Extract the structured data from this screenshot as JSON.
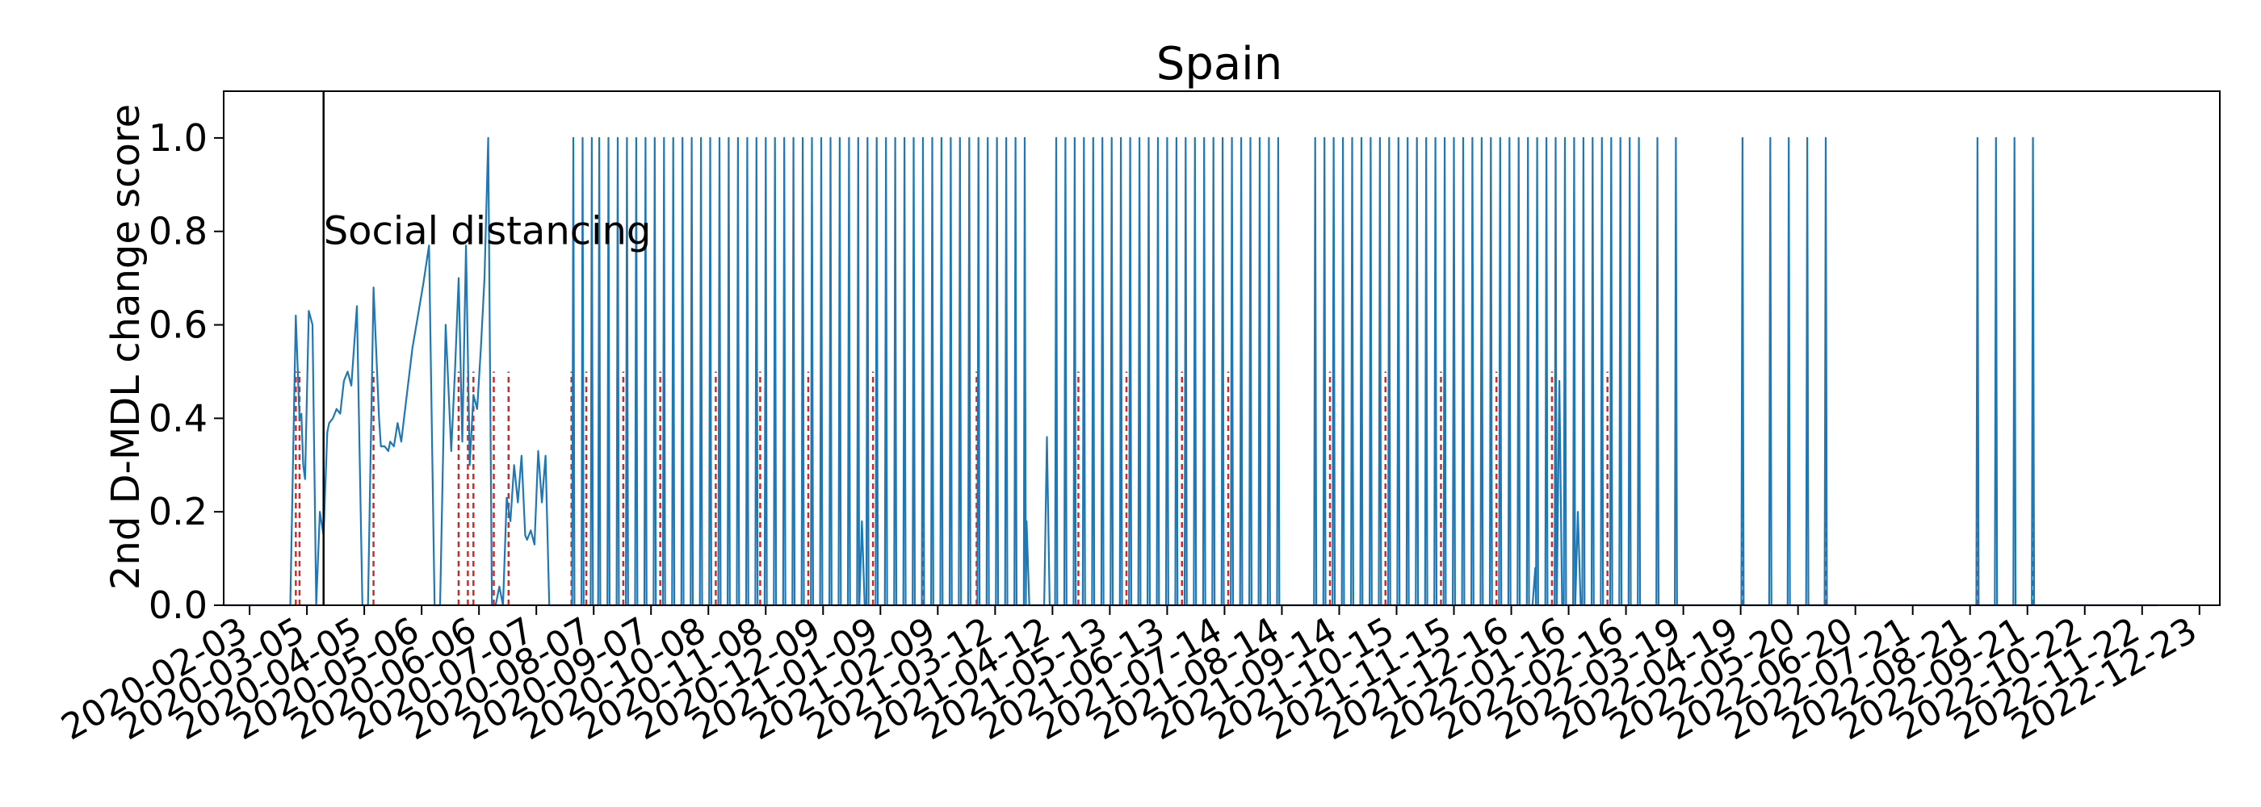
{
  "chart_data": {
    "type": "line",
    "title": "Spain",
    "xlabel": "",
    "ylabel": "2nd D-MDL change score",
    "ylim": [
      0,
      1.1
    ],
    "yticks": [
      "0.0",
      "0.2",
      "0.4",
      "0.6",
      "0.8",
      "1.0"
    ],
    "grid": false,
    "xlim": [
      "2020-01-20",
      "2023-01-03"
    ],
    "xticks": [
      "2020-02-03",
      "2020-03-05",
      "2020-04-05",
      "2020-05-06",
      "2020-06-06",
      "2020-07-07",
      "2020-08-07",
      "2020-09-07",
      "2020-10-08",
      "2020-11-08",
      "2020-12-09",
      "2021-01-09",
      "2021-02-09",
      "2021-03-12",
      "2021-04-12",
      "2021-05-13",
      "2021-06-13",
      "2021-07-14",
      "2021-08-14",
      "2021-09-14",
      "2021-10-15",
      "2021-11-15",
      "2021-12-16",
      "2022-01-16",
      "2022-02-16",
      "2022-03-19",
      "2022-04-19",
      "2022-05-20",
      "2022-06-20",
      "2022-07-21",
      "2022-08-21",
      "2022-09-21",
      "2022-10-22",
      "2022-11-22",
      "2022-12-23"
    ],
    "annotations": [
      {
        "label": "Social distancing",
        "x": "2020-03-14"
      }
    ],
    "early_segment": {
      "x": [
        "2020-01-20",
        "2020-02-25",
        "2020-02-28",
        "2020-03-01",
        "2020-03-02",
        "2020-03-03",
        "2020-03-04",
        "2020-03-06",
        "2020-03-08",
        "2020-03-10",
        "2020-03-12",
        "2020-03-14",
        "2020-03-16",
        "2020-03-17",
        "2020-03-19",
        "2020-03-21",
        "2020-03-23",
        "2020-03-25",
        "2020-03-27",
        "2020-03-29",
        "2020-04-01",
        "2020-04-04",
        "2020-04-07",
        "2020-04-10",
        "2020-04-13",
        "2020-04-14",
        "2020-04-16",
        "2020-04-18",
        "2020-04-19",
        "2020-04-21",
        "2020-04-23",
        "2020-04-25",
        "2020-04-28",
        "2020-05-01",
        "2020-05-04",
        "2020-05-07",
        "2020-05-10",
        "2020-05-13",
        "2020-05-16",
        "2020-05-19",
        "2020-05-22",
        "2020-05-24",
        "2020-05-26",
        "2020-05-28",
        "2020-05-30",
        "2020-06-01",
        "2020-06-03",
        "2020-06-05",
        "2020-06-07",
        "2020-06-09",
        "2020-06-11",
        "2020-06-13",
        "2020-06-15",
        "2020-06-17",
        "2020-06-19",
        "2020-06-21",
        "2020-06-23",
        "2020-06-25",
        "2020-06-27",
        "2020-06-29",
        "2020-07-01",
        "2020-07-02",
        "2020-07-04",
        "2020-07-06",
        "2020-07-08",
        "2020-07-10",
        "2020-07-12",
        "2020-07-14",
        "2020-07-16",
        "2020-07-18",
        "2020-07-20",
        "2020-07-22",
        "2020-07-24",
        "2020-07-25",
        "2020-07-26"
      ],
      "y": [
        0,
        0,
        0.62,
        0.4,
        0.41,
        0.3,
        0.27,
        0.63,
        0.6,
        0,
        0.2,
        0.15,
        0.37,
        0.39,
        0.4,
        0.42,
        0.41,
        0.48,
        0.5,
        0.47,
        0.64,
        0,
        0,
        0.68,
        0.4,
        0.34,
        0.34,
        0.33,
        0.35,
        0.34,
        0.39,
        0.35,
        0.45,
        0.55,
        0.62,
        0.69,
        0.77,
        0,
        0,
        0.6,
        0.33,
        0.5,
        0.7,
        0.35,
        0.77,
        0.3,
        0.45,
        0.42,
        0.55,
        0.7,
        1.0,
        0,
        0,
        0.04,
        0,
        0.23,
        0.18,
        0.3,
        0.22,
        0.32,
        0.15,
        0.14,
        0.16,
        0.13,
        0.33,
        0.22,
        0.32,
        0,
        0,
        0,
        0,
        0,
        0,
        0,
        0
      ]
    },
    "spike_dates": [
      "2020-07-27",
      "2020-08-01",
      "2020-08-06",
      "2020-08-10",
      "2020-08-15",
      "2020-08-20",
      "2020-08-25",
      "2020-08-30",
      "2020-09-04",
      "2020-09-09",
      "2020-09-14",
      "2020-09-19",
      "2020-09-24",
      "2020-09-29",
      "2020-10-04",
      "2020-10-09",
      "2020-10-14",
      "2020-10-19",
      "2020-10-24",
      "2020-10-29",
      "2020-11-03",
      "2020-11-08",
      "2020-11-13",
      "2020-11-18",
      "2020-11-23",
      "2020-11-28",
      "2020-12-03",
      "2020-12-08",
      "2020-12-13",
      "2020-12-18",
      "2020-12-23",
      "2020-12-28",
      "2021-01-02",
      "2021-01-07",
      "2021-01-12",
      "2021-01-17",
      "2021-01-22",
      "2021-01-27",
      "2021-02-01",
      "2021-02-06",
      "2021-02-11",
      "2021-02-16",
      "2021-02-21",
      "2021-02-26",
      "2021-03-03",
      "2021-03-08",
      "2021-03-13",
      "2021-03-18",
      "2021-03-23",
      "2021-03-28",
      "2021-04-14",
      "2021-04-19",
      "2021-04-24",
      "2021-04-29",
      "2021-05-04",
      "2021-05-09",
      "2021-05-14",
      "2021-05-19",
      "2021-05-24",
      "2021-05-29",
      "2021-06-03",
      "2021-06-08",
      "2021-06-13",
      "2021-06-18",
      "2021-06-23",
      "2021-06-28",
      "2021-07-03",
      "2021-07-08",
      "2021-07-13",
      "2021-07-18",
      "2021-07-23",
      "2021-07-28",
      "2021-08-02",
      "2021-08-07",
      "2021-08-12",
      "2021-09-01",
      "2021-09-06",
      "2021-09-11",
      "2021-09-16",
      "2021-09-21",
      "2021-09-26",
      "2021-10-01",
      "2021-10-06",
      "2021-10-11",
      "2021-10-16",
      "2021-10-21",
      "2021-10-26",
      "2021-10-31",
      "2021-11-05",
      "2021-11-10",
      "2021-11-15",
      "2021-11-20",
      "2021-11-25",
      "2021-11-30",
      "2021-12-05",
      "2021-12-10",
      "2021-12-15",
      "2021-12-20",
      "2021-12-25",
      "2021-12-30",
      "2022-01-04",
      "2022-01-09",
      "2022-01-14",
      "2022-01-19",
      "2022-01-24",
      "2022-01-29",
      "2022-02-03",
      "2022-02-08",
      "2022-02-13",
      "2022-02-18",
      "2022-02-23",
      "2022-03-05",
      "2022-03-15",
      "2022-04-20",
      "2022-05-05",
      "2022-05-15",
      "2022-05-25",
      "2022-06-04",
      "2022-08-25",
      "2022-09-04",
      "2022-09-14",
      "2022-09-24"
    ],
    "small_bumps": [
      {
        "x": "2020-12-30",
        "y": 0.18
      },
      {
        "x": "2021-03-29",
        "y": 0.18
      },
      {
        "x": "2021-04-09",
        "y": 0.36
      },
      {
        "x": "2021-12-29",
        "y": 0.08
      },
      {
        "x": "2022-01-11",
        "y": 0.48
      },
      {
        "x": "2022-01-21",
        "y": 0.2
      }
    ],
    "red_dashed_dates": [
      "2020-02-28",
      "2020-03-01",
      "2020-04-10",
      "2020-05-26",
      "2020-05-31",
      "2020-06-03",
      "2020-06-14",
      "2020-06-22",
      "2020-07-26",
      "2020-08-03",
      "2020-08-23",
      "2020-09-12",
      "2020-10-12",
      "2020-11-05",
      "2020-12-01",
      "2021-01-05",
      "2021-02-01",
      "2021-03-02",
      "2021-04-26",
      "2021-05-22",
      "2021-06-21",
      "2021-07-16",
      "2021-09-09",
      "2021-10-09",
      "2021-11-08",
      "2021-12-08",
      "2022-01-07",
      "2022-02-06",
      "2022-04-20",
      "2022-06-04",
      "2022-08-25",
      "2022-09-24"
    ],
    "series": [
      {
        "color": "#1f77b4"
      }
    ],
    "marker_colors": {
      "changepoint": "#d62728",
      "event": "#000000"
    }
  }
}
